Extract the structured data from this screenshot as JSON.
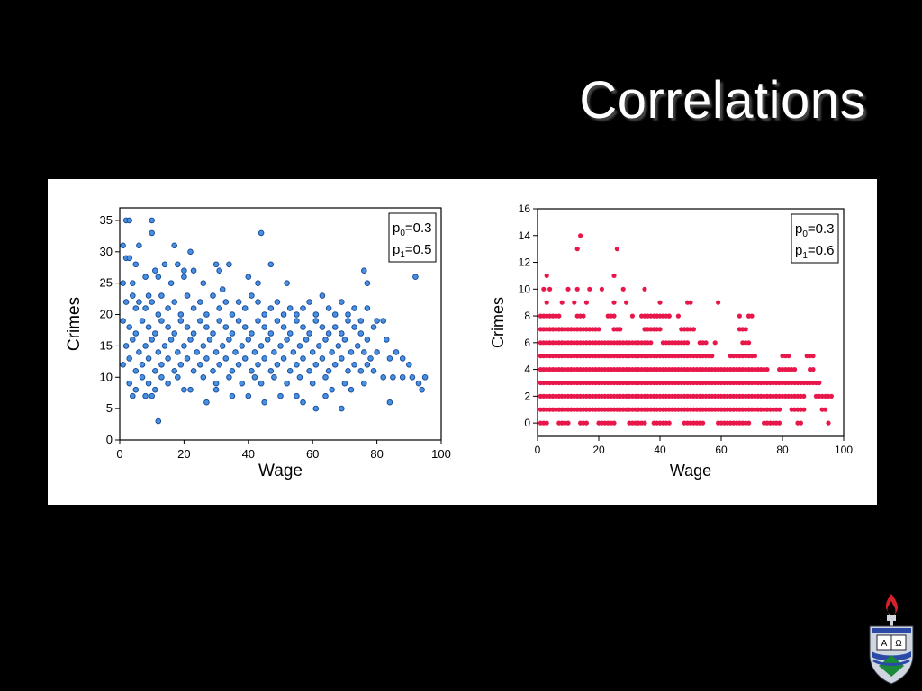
{
  "slide": {
    "title": "Correlations"
  },
  "chart_data": [
    {
      "type": "scatter",
      "title": "",
      "xlabel": "Wage",
      "ylabel": "Crimes",
      "xlim": [
        0,
        100
      ],
      "ylim": [
        0,
        37
      ],
      "xticks": [
        0,
        20,
        40,
        60,
        80,
        100
      ],
      "yticks": [
        0,
        5,
        10,
        15,
        20,
        25,
        30,
        35
      ],
      "grid": false,
      "legend_placement": "top-right",
      "marker_color": "#4a90e2",
      "marker_edge": "#1a4e9a",
      "legend": {
        "p0_label": "p",
        "p0_sub": "0",
        "p0_value": "=0.3",
        "p1_label": "p",
        "p1_sub": "1",
        "p1_value": "=0.5"
      },
      "points": [
        [
          2,
          35
        ],
        [
          3,
          35
        ],
        [
          10,
          35
        ],
        [
          10,
          33
        ],
        [
          1,
          31
        ],
        [
          6,
          31
        ],
        [
          17,
          31
        ],
        [
          44,
          33
        ],
        [
          22,
          30
        ],
        [
          2,
          29
        ],
        [
          3,
          29
        ],
        [
          5,
          28
        ],
        [
          14,
          28
        ],
        [
          18,
          28
        ],
        [
          30,
          28
        ],
        [
          31,
          27
        ],
        [
          34,
          28
        ],
        [
          47,
          28
        ],
        [
          76,
          27
        ],
        [
          92,
          26
        ],
        [
          1,
          25
        ],
        [
          4,
          25
        ],
        [
          8,
          26
        ],
        [
          12,
          26
        ],
        [
          16,
          25
        ],
        [
          20,
          26
        ],
        [
          26,
          25
        ],
        [
          32,
          24
        ],
        [
          40,
          26
        ],
        [
          43,
          25
        ],
        [
          52,
          25
        ],
        [
          77,
          25
        ],
        [
          20,
          27
        ],
        [
          23,
          27
        ],
        [
          11,
          27
        ],
        [
          2,
          22
        ],
        [
          4,
          23
        ],
        [
          5,
          21
        ],
        [
          6,
          22
        ],
        [
          8,
          21
        ],
        [
          9,
          23
        ],
        [
          10,
          22
        ],
        [
          12,
          20
        ],
        [
          13,
          23
        ],
        [
          15,
          21
        ],
        [
          17,
          22
        ],
        [
          19,
          20
        ],
        [
          21,
          23
        ],
        [
          23,
          21
        ],
        [
          25,
          22
        ],
        [
          27,
          20
        ],
        [
          29,
          23
        ],
        [
          31,
          21
        ],
        [
          33,
          22
        ],
        [
          35,
          20
        ],
        [
          37,
          22
        ],
        [
          39,
          21
        ],
        [
          41,
          23
        ],
        [
          43,
          22
        ],
        [
          45,
          20
        ],
        [
          47,
          21
        ],
        [
          49,
          22
        ],
        [
          51,
          20
        ],
        [
          53,
          21
        ],
        [
          55,
          20
        ],
        [
          57,
          21
        ],
        [
          59,
          22
        ],
        [
          61,
          20
        ],
        [
          63,
          23
        ],
        [
          65,
          21
        ],
        [
          67,
          20
        ],
        [
          69,
          22
        ],
        [
          71,
          20
        ],
        [
          73,
          21
        ],
        [
          75,
          19
        ],
        [
          77,
          21
        ],
        [
          80,
          19
        ],
        [
          82,
          19
        ],
        [
          1,
          19
        ],
        [
          3,
          18
        ],
        [
          5,
          17
        ],
        [
          7,
          19
        ],
        [
          9,
          18
        ],
        [
          11,
          17
        ],
        [
          13,
          19
        ],
        [
          15,
          18
        ],
        [
          17,
          17
        ],
        [
          19,
          19
        ],
        [
          21,
          18
        ],
        [
          23,
          17
        ],
        [
          25,
          19
        ],
        [
          27,
          18
        ],
        [
          29,
          17
        ],
        [
          31,
          19
        ],
        [
          33,
          18
        ],
        [
          35,
          17
        ],
        [
          37,
          19
        ],
        [
          39,
          18
        ],
        [
          41,
          17
        ],
        [
          43,
          19
        ],
        [
          45,
          18
        ],
        [
          47,
          17
        ],
        [
          49,
          19
        ],
        [
          51,
          18
        ],
        [
          53,
          17
        ],
        [
          55,
          19
        ],
        [
          57,
          18
        ],
        [
          59,
          17
        ],
        [
          61,
          19
        ],
        [
          63,
          18
        ],
        [
          65,
          17
        ],
        [
          67,
          18
        ],
        [
          69,
          17
        ],
        [
          71,
          19
        ],
        [
          73,
          18
        ],
        [
          75,
          17
        ],
        [
          77,
          16
        ],
        [
          79,
          18
        ],
        [
          83,
          16
        ],
        [
          86,
          14
        ],
        [
          88,
          13
        ],
        [
          2,
          15
        ],
        [
          4,
          16
        ],
        [
          6,
          14
        ],
        [
          8,
          15
        ],
        [
          10,
          16
        ],
        [
          12,
          14
        ],
        [
          14,
          15
        ],
        [
          16,
          16
        ],
        [
          18,
          14
        ],
        [
          20,
          15
        ],
        [
          22,
          16
        ],
        [
          24,
          14
        ],
        [
          26,
          15
        ],
        [
          28,
          16
        ],
        [
          30,
          14
        ],
        [
          32,
          15
        ],
        [
          34,
          16
        ],
        [
          36,
          14
        ],
        [
          38,
          15
        ],
        [
          40,
          16
        ],
        [
          42,
          14
        ],
        [
          44,
          15
        ],
        [
          46,
          16
        ],
        [
          48,
          14
        ],
        [
          50,
          15
        ],
        [
          52,
          16
        ],
        [
          54,
          14
        ],
        [
          56,
          15
        ],
        [
          58,
          16
        ],
        [
          60,
          14
        ],
        [
          62,
          15
        ],
        [
          64,
          16
        ],
        [
          66,
          14
        ],
        [
          68,
          15
        ],
        [
          70,
          16
        ],
        [
          72,
          14
        ],
        [
          74,
          15
        ],
        [
          76,
          14
        ],
        [
          78,
          13
        ],
        [
          80,
          14
        ],
        [
          84,
          13
        ],
        [
          90,
          12
        ],
        [
          1,
          12
        ],
        [
          3,
          13
        ],
        [
          5,
          11
        ],
        [
          7,
          12
        ],
        [
          9,
          13
        ],
        [
          11,
          11
        ],
        [
          13,
          12
        ],
        [
          15,
          13
        ],
        [
          17,
          11
        ],
        [
          19,
          12
        ],
        [
          21,
          13
        ],
        [
          23,
          11
        ],
        [
          25,
          12
        ],
        [
          27,
          13
        ],
        [
          29,
          11
        ],
        [
          31,
          12
        ],
        [
          33,
          13
        ],
        [
          35,
          11
        ],
        [
          37,
          12
        ],
        [
          39,
          13
        ],
        [
          41,
          11
        ],
        [
          43,
          12
        ],
        [
          45,
          13
        ],
        [
          47,
          11
        ],
        [
          49,
          12
        ],
        [
          51,
          13
        ],
        [
          53,
          11
        ],
        [
          55,
          12
        ],
        [
          57,
          13
        ],
        [
          59,
          11
        ],
        [
          61,
          12
        ],
        [
          63,
          13
        ],
        [
          65,
          11
        ],
        [
          67,
          12
        ],
        [
          69,
          13
        ],
        [
          71,
          11
        ],
        [
          73,
          12
        ],
        [
          75,
          11
        ],
        [
          77,
          12
        ],
        [
          79,
          11
        ],
        [
          82,
          10
        ],
        [
          85,
          10
        ],
        [
          88,
          10
        ],
        [
          91,
          10
        ],
        [
          93,
          9
        ],
        [
          95,
          10
        ],
        [
          94,
          8
        ],
        [
          3,
          9
        ],
        [
          5,
          8
        ],
        [
          7,
          10
        ],
        [
          9,
          9
        ],
        [
          11,
          8
        ],
        [
          13,
          10
        ],
        [
          15,
          9
        ],
        [
          18,
          10
        ],
        [
          22,
          8
        ],
        [
          26,
          10
        ],
        [
          30,
          9
        ],
        [
          34,
          10
        ],
        [
          38,
          9
        ],
        [
          42,
          10
        ],
        [
          44,
          9
        ],
        [
          48,
          10
        ],
        [
          52,
          9
        ],
        [
          56,
          10
        ],
        [
          60,
          9
        ],
        [
          64,
          10
        ],
        [
          66,
          8
        ],
        [
          70,
          9
        ],
        [
          72,
          8
        ],
        [
          76,
          9
        ],
        [
          4,
          7
        ],
        [
          8,
          7
        ],
        [
          10,
          7
        ],
        [
          20,
          8
        ],
        [
          27,
          6
        ],
        [
          30,
          8
        ],
        [
          35,
          7
        ],
        [
          40,
          7
        ],
        [
          45,
          6
        ],
        [
          50,
          7
        ],
        [
          55,
          7
        ],
        [
          57,
          6
        ],
        [
          61,
          5
        ],
        [
          64,
          7
        ],
        [
          69,
          5
        ],
        [
          84,
          6
        ],
        [
          12,
          3
        ]
      ]
    },
    {
      "type": "scatter",
      "title": "",
      "xlabel": "Wage",
      "ylabel": "Crimes",
      "xlim": [
        0,
        100
      ],
      "ylim": [
        -1,
        16
      ],
      "xticks": [
        0,
        20,
        40,
        60,
        80,
        100
      ],
      "yticks": [
        0,
        2,
        4,
        6,
        8,
        10,
        12,
        14,
        16
      ],
      "grid": false,
      "legend_placement": "top-right",
      "marker_color": "#e8174a",
      "legend": {
        "p0_label": "p",
        "p0_sub": "0",
        "p0_value": "=0.3",
        "p1_label": "p",
        "p1_sub": "1",
        "p1_value": "=0.6"
      },
      "ranges": [
        {
          "y": 0,
          "x_from": 1,
          "x_to": 95,
          "gaps": [
            [
              4,
              6
            ],
            [
              11,
              13
            ],
            [
              17,
              19
            ],
            [
              26,
              29
            ],
            [
              36,
              37
            ],
            [
              44,
              47
            ],
            [
              55,
              58
            ],
            [
              70,
              73
            ],
            [
              80,
              84
            ],
            [
              87,
              94
            ]
          ]
        },
        {
          "y": 1,
          "x_from": 1,
          "x_to": 94,
          "gaps": [
            [
              80,
              82
            ],
            [
              88,
              92
            ]
          ]
        },
        {
          "y": 2,
          "x_from": 1,
          "x_to": 96,
          "gaps": [
            [
              88,
              90
            ]
          ]
        },
        {
          "y": 3,
          "x_from": 1,
          "x_to": 92,
          "gaps": []
        },
        {
          "y": 4,
          "x_from": 1,
          "x_to": 90,
          "gaps": [
            [
              76,
              78
            ],
            [
              85,
              88
            ]
          ]
        },
        {
          "y": 5,
          "x_from": 1,
          "x_to": 90,
          "gaps": [
            [
              58,
              62
            ],
            [
              72,
              79
            ],
            [
              83,
              87
            ]
          ]
        },
        {
          "y": 6,
          "x_from": 1,
          "x_to": 69,
          "gaps": [
            [
              38,
              40
            ],
            [
              50,
              52
            ],
            [
              56,
              57
            ],
            [
              59,
              66
            ]
          ]
        },
        {
          "y": 7,
          "x_from": 1,
          "x_to": 68,
          "gaps": [
            [
              21,
              24
            ],
            [
              28,
              34
            ],
            [
              41,
              46
            ],
            [
              52,
              65
            ]
          ]
        },
        {
          "y": 8,
          "x_from": 1,
          "x_to": 70,
          "gaps": [
            [
              8,
              12
            ],
            [
              16,
              22
            ],
            [
              26,
              34
            ],
            [
              44,
              68
            ]
          ]
        }
      ],
      "points": [
        [
          2,
          10
        ],
        [
          3,
          9
        ],
        [
          4,
          10
        ],
        [
          8,
          9
        ],
        [
          10,
          10
        ],
        [
          13,
          10
        ],
        [
          17,
          10
        ],
        [
          21,
          10
        ],
        [
          28,
          10
        ],
        [
          35,
          10
        ],
        [
          40,
          9
        ],
        [
          49,
          9
        ],
        [
          50,
          9
        ],
        [
          59,
          9
        ],
        [
          29,
          9
        ],
        [
          25,
          9
        ],
        [
          12,
          9
        ],
        [
          16,
          9
        ],
        [
          3,
          11
        ],
        [
          25,
          11
        ],
        [
          13,
          13
        ],
        [
          26,
          13
        ],
        [
          14,
          14
        ],
        [
          66,
          8
        ],
        [
          69,
          8
        ],
        [
          43,
          8
        ],
        [
          46,
          8
        ],
        [
          34,
          8
        ],
        [
          31,
          8
        ],
        [
          39,
          8
        ]
      ]
    }
  ]
}
